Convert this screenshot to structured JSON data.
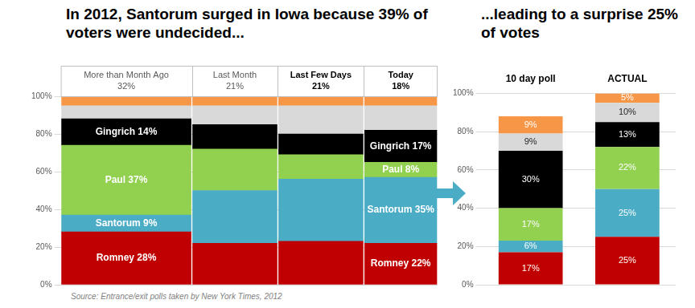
{
  "chart_data": [
    {
      "type": "bar",
      "title": "In 2012, Santorum surged in Iowa because 39% of voters were undecided...",
      "source": "Source: Entrance/exit polls taken by New York Times, 2012",
      "stacked": true,
      "data_labels": true,
      "grid": true,
      "categories": [
        "More than Month Ago",
        "Last Month",
        "Last Few Days",
        "Today"
      ],
      "widths": [
        32,
        21,
        21,
        18
      ],
      "width_labels": [
        "32%",
        "21%",
        "21%",
        "18%"
      ],
      "ylim": [
        0,
        100
      ],
      "yticks": [
        {
          "value": 0,
          "label": "0%"
        },
        {
          "value": 20,
          "label": "20%"
        },
        {
          "value": 40,
          "label": "40%"
        },
        {
          "value": 60,
          "label": "60%"
        },
        {
          "value": 80,
          "label": "80%"
        },
        {
          "value": 100,
          "label": "100%"
        }
      ],
      "series": [
        {
          "name": "Romney",
          "color": "#c00000",
          "values": [
            28,
            22,
            23,
            22
          ],
          "value_labels": [
            "Romney 28%",
            null,
            null,
            "Romney 22%"
          ]
        },
        {
          "name": "Santorum",
          "color": "#4bacc6",
          "values": [
            9,
            28,
            33,
            35
          ],
          "value_labels": [
            "Santorum 9%",
            null,
            null,
            "Santorum 35%"
          ]
        },
        {
          "name": "Paul",
          "color": "#92d050",
          "values": [
            37,
            22,
            13,
            8
          ],
          "value_labels": [
            "Paul 37%",
            null,
            null,
            "Paul 8%"
          ]
        },
        {
          "name": "Gingrich",
          "color": "#000000",
          "values": [
            14,
            13,
            11,
            17
          ],
          "value_labels": [
            "Gingrich 14%",
            null,
            null,
            "Gingrich 17%"
          ]
        },
        {
          "name": null,
          "color": "#d9d9d9",
          "values": [
            7,
            10,
            15,
            13
          ]
        },
        {
          "name": null,
          "color": "#f79646",
          "values": [
            5,
            5,
            5,
            5
          ]
        }
      ]
    },
    {
      "type": "bar",
      "title": "...leading to a surprise 25% of votes",
      "stacked": true,
      "data_labels": true,
      "grid": true,
      "categories": [
        "10 day poll",
        "ACTUAL"
      ],
      "ylim": [
        0,
        100
      ],
      "yticks": [
        {
          "value": 0,
          "label": "0%"
        },
        {
          "value": 20,
          "label": "20%"
        },
        {
          "value": 40,
          "label": "40%"
        },
        {
          "value": 60,
          "label": "60%"
        },
        {
          "value": 80,
          "label": "80%"
        },
        {
          "value": 100,
          "label": "100%"
        }
      ],
      "series": [
        {
          "name": "Romney",
          "color": "#c00000",
          "values": [
            17,
            25
          ],
          "value_labels": [
            "17%",
            "25%"
          ]
        },
        {
          "name": "Santorum",
          "color": "#4bacc6",
          "values": [
            6,
            25
          ],
          "value_labels": [
            "6%",
            "25%"
          ]
        },
        {
          "name": "Paul",
          "color": "#92d050",
          "values": [
            17,
            22
          ],
          "value_labels": [
            "17%",
            "22%"
          ]
        },
        {
          "name": "Gingrich",
          "color": "#000000",
          "values": [
            30,
            13
          ],
          "value_labels": [
            "30%",
            "13%"
          ]
        },
        {
          "name": null,
          "color": "#d9d9d9",
          "values": [
            9,
            10
          ],
          "value_labels": [
            "9%",
            "10%"
          ]
        },
        {
          "name": null,
          "color": "#f79646",
          "values": [
            9,
            5
          ],
          "value_labels": [
            "9%",
            "5%"
          ]
        }
      ]
    }
  ]
}
